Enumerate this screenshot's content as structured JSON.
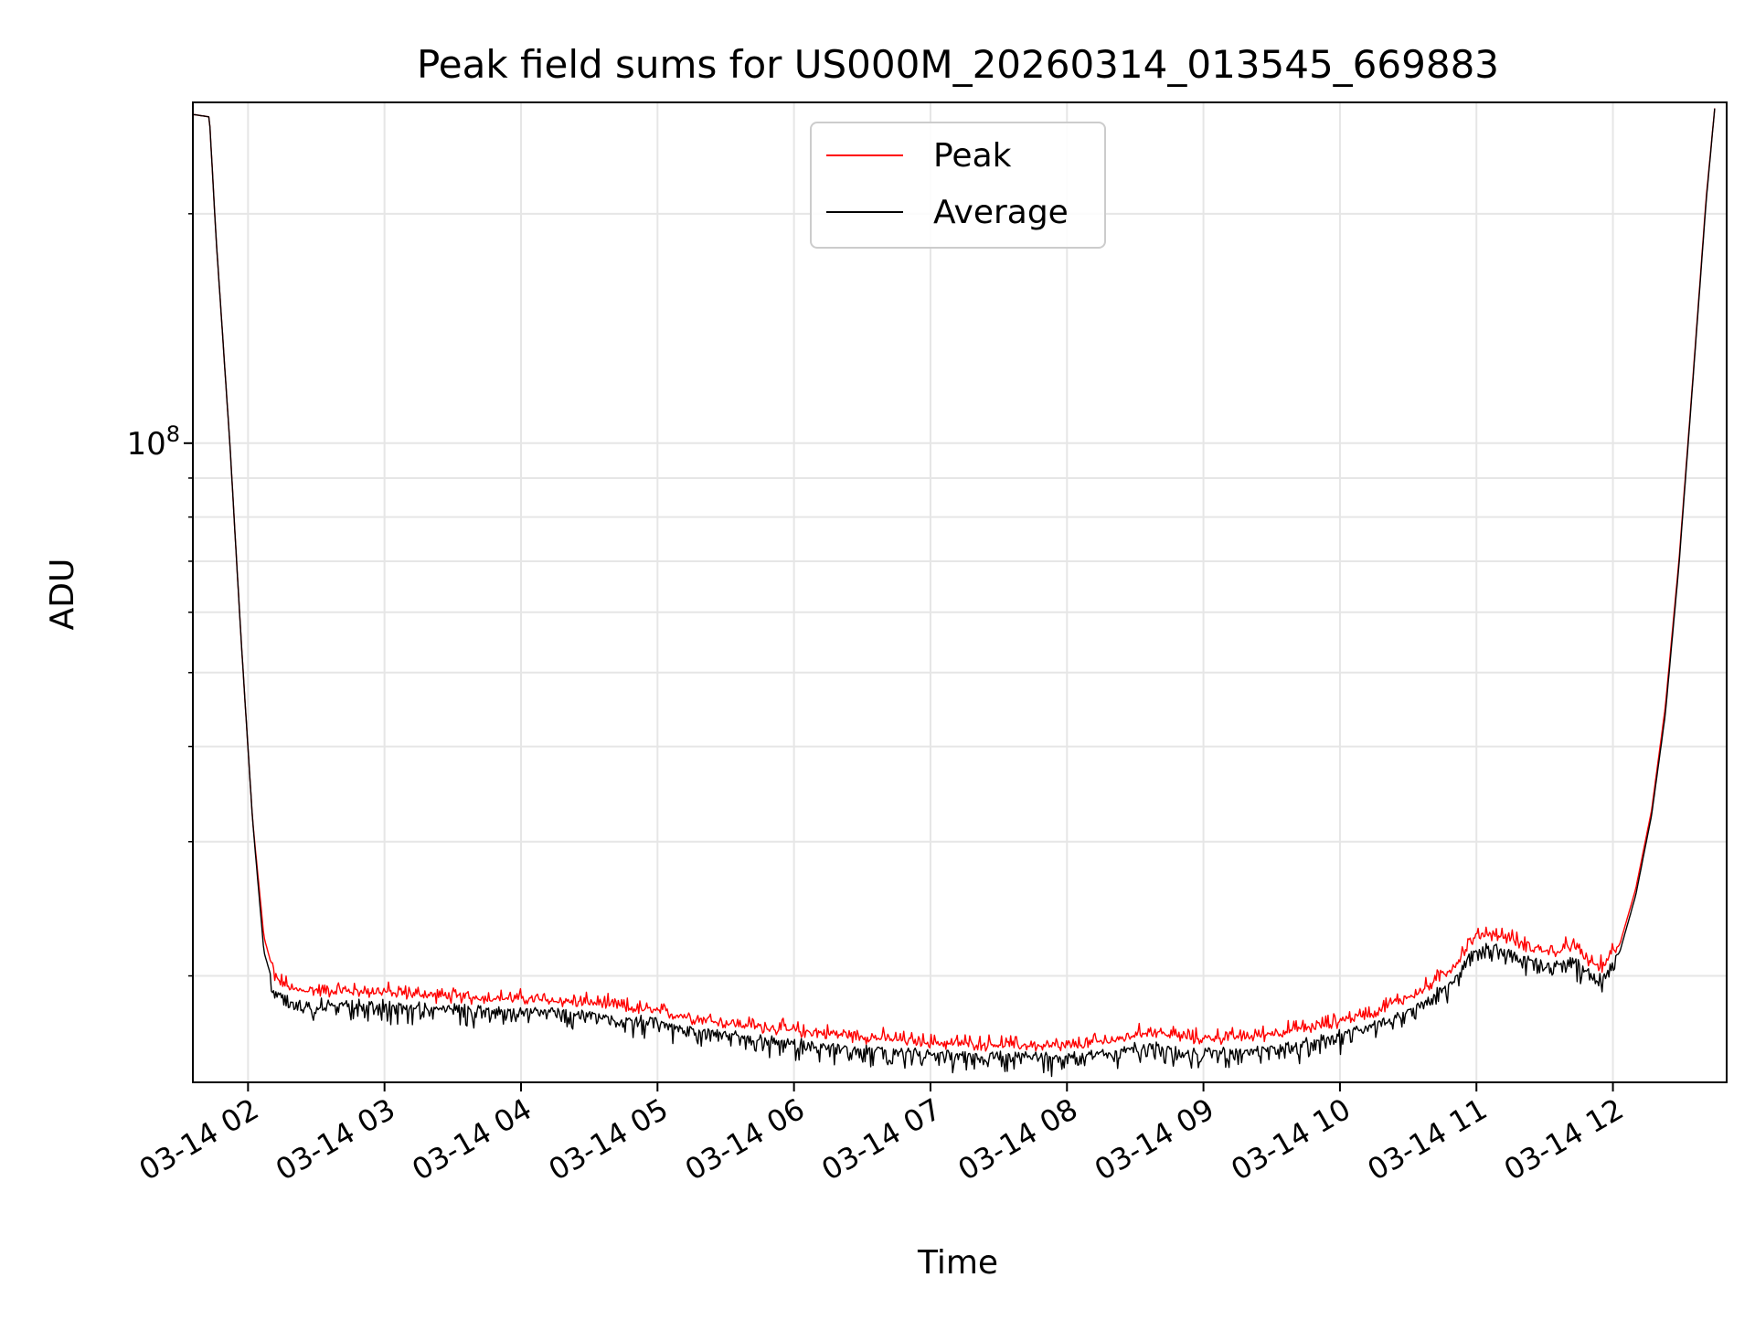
{
  "chart_data": {
    "type": "line",
    "title": "Peak field sums for US000M_20260314_013545_669883",
    "xlabel": "Time",
    "ylabel": "ADU",
    "y_scale": "log",
    "ylim": [
      14500000,
      280000000
    ],
    "xlim": [
      "2026-03-14T01:35:45",
      "2026-03-14T12:50:00"
    ],
    "grid": true,
    "legend_position": "upper center",
    "x_ticks": [
      "03-14 02",
      "03-14 03",
      "03-14 04",
      "03-14 05",
      "03-14 06",
      "03-14 07",
      "03-14 08",
      "03-14 09",
      "03-14 10",
      "03-14 11",
      "03-14 12"
    ],
    "y_major_tick_labels": [
      {
        "value": 100000000,
        "base": "10",
        "exponent": "8"
      }
    ],
    "y_minor_ticks": [
      20000000,
      30000000,
      40000000,
      50000000,
      60000000,
      70000000,
      80000000,
      90000000,
      200000000
    ],
    "series": [
      {
        "name": "Peak",
        "color": "#ff0000",
        "points": [
          [
            "2026-03-14T01:35:45",
            270000000
          ],
          [
            "2026-03-14T01:43:00",
            268000000
          ],
          [
            "2026-03-14T01:46:00",
            185000000
          ],
          [
            "2026-03-14T01:52:00",
            100000000
          ],
          [
            "2026-03-14T01:57:00",
            55000000
          ],
          [
            "2026-03-14T02:02:00",
            32000000
          ],
          [
            "2026-03-14T02:07:00",
            22500000
          ],
          [
            "2026-03-14T02:12:00",
            19800000
          ],
          [
            "2026-03-14T02:20:00",
            19100000
          ],
          [
            "2026-03-14T03:00:00",
            19000000
          ],
          [
            "2026-03-14T03:30:00",
            18700000
          ],
          [
            "2026-03-14T04:00:00",
            18600000
          ],
          [
            "2026-03-14T04:30:00",
            18400000
          ],
          [
            "2026-03-14T05:00:00",
            17900000
          ],
          [
            "2026-03-14T05:30:00",
            17300000
          ],
          [
            "2026-03-14T06:00:00",
            16900000
          ],
          [
            "2026-03-14T06:30:00",
            16600000
          ],
          [
            "2026-03-14T07:00:00",
            16300000
          ],
          [
            "2026-03-14T07:30:00",
            16200000
          ],
          [
            "2026-03-14T08:00:00",
            16100000
          ],
          [
            "2026-03-14T08:20:00",
            16400000
          ],
          [
            "2026-03-14T08:37:00",
            16900000
          ],
          [
            "2026-03-14T08:55:00",
            16500000
          ],
          [
            "2026-03-14T09:20:00",
            16600000
          ],
          [
            "2026-03-14T09:50:00",
            17100000
          ],
          [
            "2026-03-14T10:15:00",
            17900000
          ],
          [
            "2026-03-14T10:35:00",
            19000000
          ],
          [
            "2026-03-14T10:50:00",
            20500000
          ],
          [
            "2026-03-14T10:58:00",
            22200000
          ],
          [
            "2026-03-14T11:05:00",
            22700000
          ],
          [
            "2026-03-14T11:15:00",
            22300000
          ],
          [
            "2026-03-14T11:25:00",
            21700000
          ],
          [
            "2026-03-14T11:35:00",
            21400000
          ],
          [
            "2026-03-14T11:42:00",
            21900000
          ],
          [
            "2026-03-14T11:48:00",
            21000000
          ],
          [
            "2026-03-14T11:55:00",
            20500000
          ],
          [
            "2026-03-14T12:03:00",
            22000000
          ],
          [
            "2026-03-14T12:10:00",
            26000000
          ],
          [
            "2026-03-14T12:17:00",
            33000000
          ],
          [
            "2026-03-14T12:23:00",
            45000000
          ],
          [
            "2026-03-14T12:29:00",
            70000000
          ],
          [
            "2026-03-14T12:35:00",
            120000000
          ],
          [
            "2026-03-14T12:41:00",
            210000000
          ],
          [
            "2026-03-14T12:45:00",
            280000000
          ]
        ],
        "noise": {
          "start": "2026-03-14T02:10:00",
          "end": "2026-03-14T12:02:00",
          "amplitude_ratio": 0.045
        }
      },
      {
        "name": "Average",
        "color": "#000000",
        "points": [
          [
            "2026-03-14T01:35:45",
            270000000
          ],
          [
            "2026-03-14T01:43:00",
            268000000
          ],
          [
            "2026-03-14T01:46:00",
            185000000
          ],
          [
            "2026-03-14T01:52:00",
            100000000
          ],
          [
            "2026-03-14T01:57:00",
            55000000
          ],
          [
            "2026-03-14T02:02:00",
            32000000
          ],
          [
            "2026-03-14T02:07:00",
            21500000
          ],
          [
            "2026-03-14T02:12:00",
            19100000
          ],
          [
            "2026-03-14T02:20:00",
            18500000
          ],
          [
            "2026-03-14T03:00:00",
            18400000
          ],
          [
            "2026-03-14T03:30:00",
            18200000
          ],
          [
            "2026-03-14T04:00:00",
            18100000
          ],
          [
            "2026-03-14T04:30:00",
            17900000
          ],
          [
            "2026-03-14T05:00:00",
            17400000
          ],
          [
            "2026-03-14T05:30:00",
            16800000
          ],
          [
            "2026-03-14T06:00:00",
            16400000
          ],
          [
            "2026-03-14T06:30:00",
            16100000
          ],
          [
            "2026-03-14T07:00:00",
            15900000
          ],
          [
            "2026-03-14T07:30:00",
            15800000
          ],
          [
            "2026-03-14T08:00:00",
            15700000
          ],
          [
            "2026-03-14T08:20:00",
            15900000
          ],
          [
            "2026-03-14T08:37:00",
            16300000
          ],
          [
            "2026-03-14T08:55:00",
            15900000
          ],
          [
            "2026-03-14T09:20:00",
            16000000
          ],
          [
            "2026-03-14T09:50:00",
            16500000
          ],
          [
            "2026-03-14T10:15:00",
            17300000
          ],
          [
            "2026-03-14T10:35:00",
            18300000
          ],
          [
            "2026-03-14T10:50:00",
            19800000
          ],
          [
            "2026-03-14T10:58:00",
            21600000
          ],
          [
            "2026-03-14T11:05:00",
            22000000
          ],
          [
            "2026-03-14T11:15:00",
            21600000
          ],
          [
            "2026-03-14T11:25:00",
            21000000
          ],
          [
            "2026-03-14T11:35:00",
            20700000
          ],
          [
            "2026-03-14T11:42:00",
            21200000
          ],
          [
            "2026-03-14T11:48:00",
            20300000
          ],
          [
            "2026-03-14T11:55:00",
            19900000
          ],
          [
            "2026-03-14T12:03:00",
            21500000
          ],
          [
            "2026-03-14T12:10:00",
            25500000
          ],
          [
            "2026-03-14T12:17:00",
            32500000
          ],
          [
            "2026-03-14T12:23:00",
            44000000
          ],
          [
            "2026-03-14T12:29:00",
            69000000
          ],
          [
            "2026-03-14T12:35:00",
            119000000
          ],
          [
            "2026-03-14T12:41:00",
            208000000
          ],
          [
            "2026-03-14T12:45:00",
            280000000
          ]
        ],
        "noise": {
          "start": "2026-03-14T02:10:00",
          "end": "2026-03-14T12:02:00",
          "amplitude_ratio": 0.06
        }
      }
    ]
  }
}
